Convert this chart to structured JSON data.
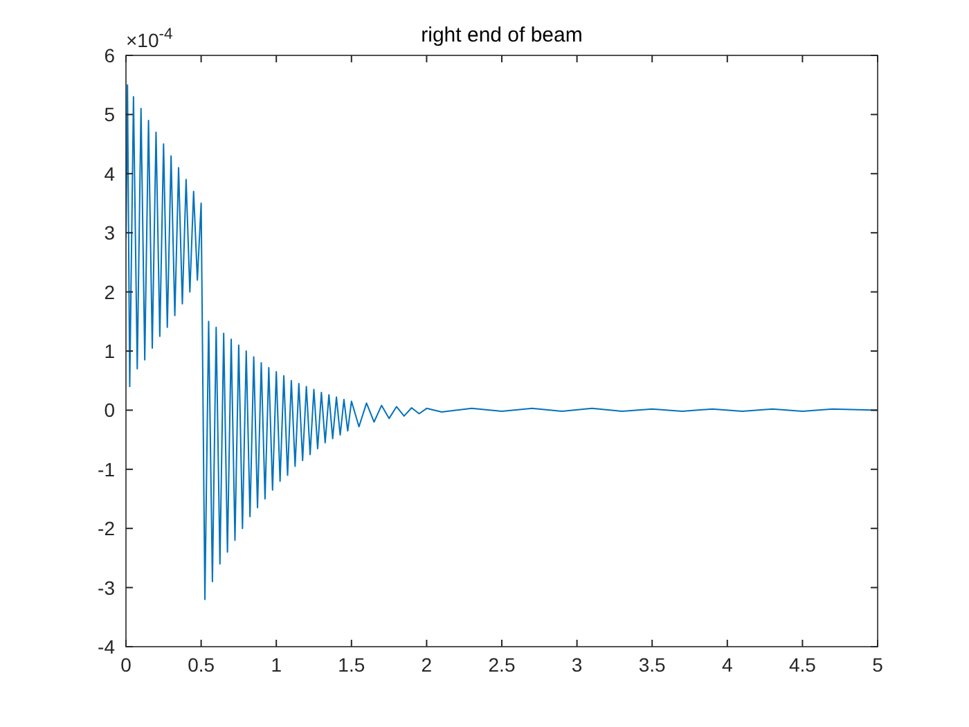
{
  "chart_data": {
    "type": "line",
    "title": "right end of beam",
    "annotations": [
      "×10$^{-4}$"
    ],
    "xlim": [
      0,
      5
    ],
    "xticks": [
      0,
      0.5,
      1,
      1.5,
      2,
      2.5,
      3,
      3.5,
      4,
      4.5,
      5
    ],
    "ylim": [
      -4,
      6
    ],
    "yticks": [
      -4,
      -3,
      -2,
      -1,
      0,
      1,
      2,
      3,
      4,
      5,
      6
    ],
    "series": [
      {
        "color": "#0072bd",
        "x": [
          0,
          0.01,
          0.025,
          0.05,
          0.075,
          0.1,
          0.125,
          0.15,
          0.175,
          0.2,
          0.225,
          0.25,
          0.275,
          0.3,
          0.325,
          0.35,
          0.375,
          0.4,
          0.425,
          0.45,
          0.475,
          0.5,
          0.525,
          0.55,
          0.575,
          0.6,
          0.625,
          0.65,
          0.675,
          0.7,
          0.725,
          0.75,
          0.775,
          0.8,
          0.825,
          0.85,
          0.875,
          0.9,
          0.925,
          0.95,
          0.975,
          1.0,
          1.025,
          1.05,
          1.075,
          1.1,
          1.125,
          1.15,
          1.175,
          1.2,
          1.225,
          1.25,
          1.275,
          1.3,
          1.325,
          1.35,
          1.375,
          1.4,
          1.425,
          1.45,
          1.475,
          1.5,
          1.55,
          1.6,
          1.65,
          1.7,
          1.75,
          1.8,
          1.85,
          1.9,
          1.95,
          2.0,
          2.1,
          2.3,
          2.5,
          2.7,
          2.9,
          3.1,
          3.3,
          3.5,
          3.7,
          3.9,
          4.1,
          4.3,
          4.5,
          4.7,
          5.0
        ],
        "values": [
          2.9,
          5.5,
          0.4,
          5.3,
          0.7,
          5.1,
          0.85,
          4.9,
          1.05,
          4.7,
          1.25,
          4.5,
          1.4,
          4.3,
          1.6,
          4.1,
          1.8,
          3.9,
          2.0,
          3.7,
          2.2,
          3.5,
          -3.2,
          1.5,
          -2.9,
          1.4,
          -2.6,
          1.3,
          -2.4,
          1.2,
          -2.2,
          1.1,
          -2.0,
          1.0,
          -1.8,
          0.9,
          -1.65,
          0.8,
          -1.5,
          0.72,
          -1.35,
          0.65,
          -1.2,
          0.58,
          -1.1,
          0.5,
          -0.95,
          0.45,
          -0.85,
          0.4,
          -0.75,
          0.35,
          -0.65,
          0.3,
          -0.55,
          0.26,
          -0.48,
          0.22,
          -0.42,
          0.18,
          -0.35,
          0.15,
          -0.28,
          0.12,
          -0.2,
          0.08,
          -0.14,
          0.06,
          -0.1,
          0.04,
          -0.06,
          0.03,
          -0.03,
          0.03,
          -0.02,
          0.03,
          -0.02,
          0.03,
          -0.02,
          0.02,
          -0.02,
          0.02,
          -0.02,
          0.02,
          -0.02,
          0.02,
          0.0
        ]
      }
    ]
  }
}
